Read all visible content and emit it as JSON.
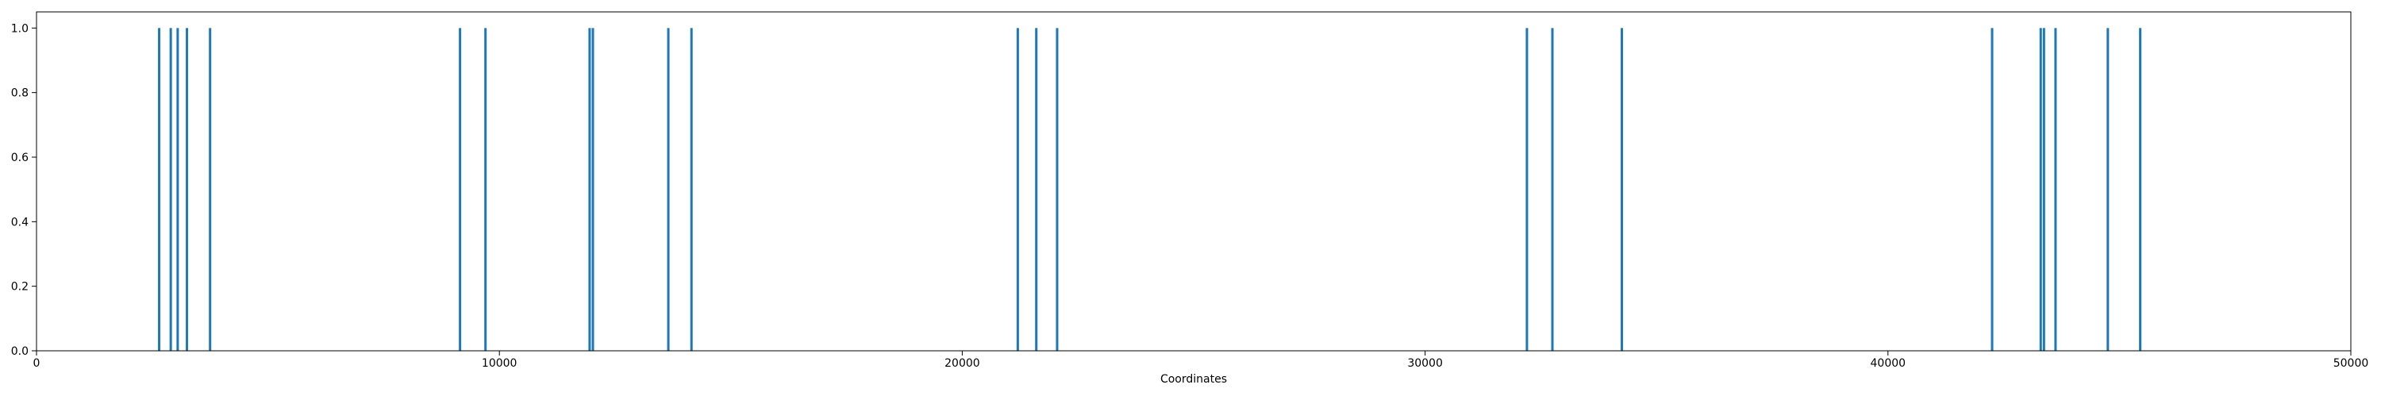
{
  "chart_data": {
    "type": "bar",
    "title": "",
    "xlabel": "Coordinates",
    "ylabel": "",
    "xlim": [
      0,
      50000
    ],
    "ylim": [
      0,
      1.05
    ],
    "grid": false,
    "legend": "none",
    "bar_color": "#1f77b4",
    "x_ticks": [
      "0",
      "10000",
      "20000",
      "30000",
      "40000",
      "50000"
    ],
    "x_tick_values": [
      0,
      10000,
      20000,
      30000,
      40000,
      50000
    ],
    "y_ticks": [
      "0.0",
      "0.2",
      "0.4",
      "0.6",
      "0.8",
      "1.0"
    ],
    "y_tick_values": [
      0,
      0.2,
      0.4,
      0.6,
      0.8,
      1.0
    ],
    "series": [
      {
        "x": [
          2650,
          2900,
          3050,
          3250,
          3750,
          9150,
          9700,
          11950,
          12020,
          13650,
          14150,
          21200,
          21600,
          22050,
          32200,
          32750,
          34250,
          42250,
          43300,
          43370,
          43620,
          44750,
          45450
        ],
        "values": [
          1,
          1,
          1,
          1,
          1,
          1,
          1,
          1,
          1,
          1,
          1,
          1,
          1,
          1,
          1,
          1,
          1,
          1,
          1,
          1,
          1,
          1,
          1
        ]
      }
    ]
  }
}
